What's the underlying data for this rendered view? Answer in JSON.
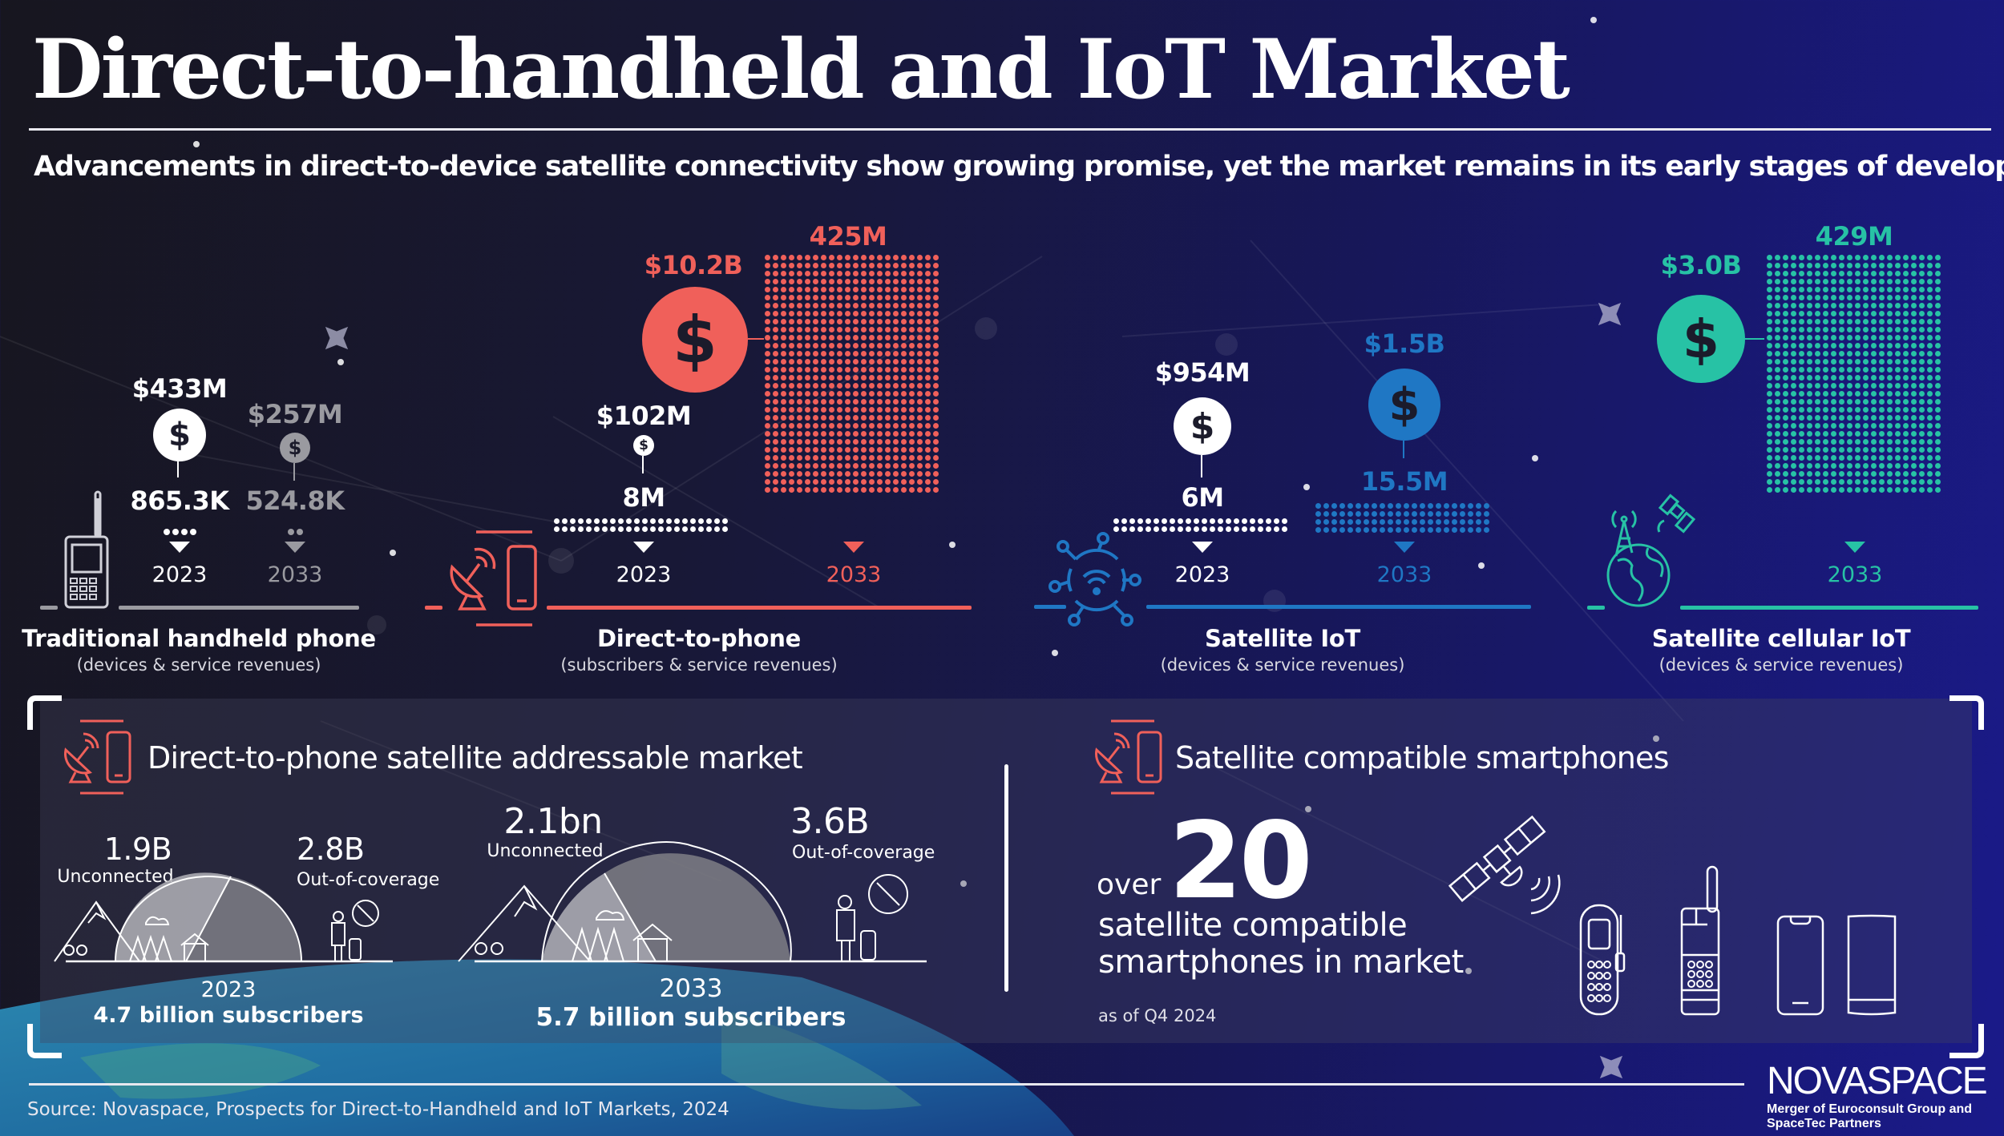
{
  "header": {
    "title": "Direct-to-handheld and IoT Market",
    "subtitle": "Advancements in direct-to-device satellite connectivity show growing promise, yet the market remains in its early stages of development"
  },
  "colors": {
    "traditional": "#ffffff",
    "traditional_2033": "#9a9aa0",
    "direct_to_phone": "#f0605a",
    "satellite_iot": "#1f77c4",
    "satellite_cellular_iot": "#27c2a5"
  },
  "segments": [
    {
      "name": "Traditional handheld phone",
      "sub": "(devices & service revenues)",
      "y2023": {
        "revenue": "$433M",
        "units": "865.3K",
        "year": "2023"
      },
      "y2033": {
        "revenue": "$257M",
        "units": "524.8K",
        "year": "2033"
      }
    },
    {
      "name": "Direct-to-phone",
      "sub": "(subscribers & service revenues)",
      "y2023": {
        "revenue": "$102M",
        "units": "8M",
        "year": "2023"
      },
      "y2033": {
        "revenue": "$10.2B",
        "units": "425M",
        "year": "2033"
      }
    },
    {
      "name": "Satellite IoT",
      "sub": "(devices & service revenues)",
      "y2023": {
        "revenue": "$954M",
        "units": "6M",
        "year": "2023"
      },
      "y2033": {
        "revenue": "$1.5B",
        "units": "15.5M",
        "year": "2033"
      }
    },
    {
      "name": "Satellite cellular IoT",
      "sub": "(devices & service revenues)",
      "y2033": {
        "revenue": "$3.0B",
        "units": "429M",
        "year": "2033"
      }
    }
  ],
  "addressable": {
    "title": "Direct-to-phone satellite addressable market",
    "y2023": {
      "unconnected_value": "1.9B",
      "unconnected_label": "Unconnected",
      "ooc_value": "2.8B",
      "ooc_label": "Out-of-coverage",
      "year": "2023",
      "total": "4.7 billion subscribers"
    },
    "y2033": {
      "unconnected_value": "2.1bn",
      "unconnected_label": "Unconnected",
      "ooc_value": "3.6B",
      "ooc_label": "Out-of-coverage",
      "year": "2033",
      "total": "5.7 billion subscribers"
    }
  },
  "smartphones": {
    "title": "Satellite compatible smartphones",
    "prefix": "over",
    "count": "20",
    "line1": "satellite compatible",
    "line2": "smartphones in market",
    "note": "as of Q4 2024"
  },
  "footer": {
    "source": "Source: Novaspace, Prospects for Direct-to-Handheld and IoT Markets, 2024",
    "logo": "NOVASPACE",
    "logo_sub1": "Merger of Euroconsult Group and",
    "logo_sub2": "SpaceTec Partners"
  },
  "chart_data": {
    "type": "table",
    "title": "Direct-to-handheld and IoT Market",
    "categories": [
      "Traditional handheld phone",
      "Direct-to-phone",
      "Satellite IoT",
      "Satellite cellular IoT"
    ],
    "series": [
      {
        "name": "Revenue 2023 (USD)",
        "values": [
          433000000,
          102000000,
          954000000,
          null
        ]
      },
      {
        "name": "Revenue 2033 (USD)",
        "values": [
          257000000,
          10200000000,
          1500000000,
          3000000000
        ]
      },
      {
        "name": "Units/Subscribers 2023",
        "values": [
          865300,
          8000000,
          6000000,
          null
        ]
      },
      {
        "name": "Units/Subscribers 2033",
        "values": [
          524800,
          425000000,
          15500000,
          429000000
        ]
      }
    ],
    "addressable_market": {
      "categories": [
        "2023",
        "2033"
      ],
      "series": [
        {
          "name": "Unconnected",
          "values": [
            1.9,
            2.1
          ]
        },
        {
          "name": "Out-of-coverage",
          "values": [
            2.8,
            3.6
          ]
        }
      ],
      "totals": [
        4.7,
        5.7
      ],
      "unit": "billion subscribers"
    },
    "satellite_compatible_smartphones": {
      "value": 20,
      "qualifier": "over",
      "as_of": "Q4 2024"
    }
  }
}
